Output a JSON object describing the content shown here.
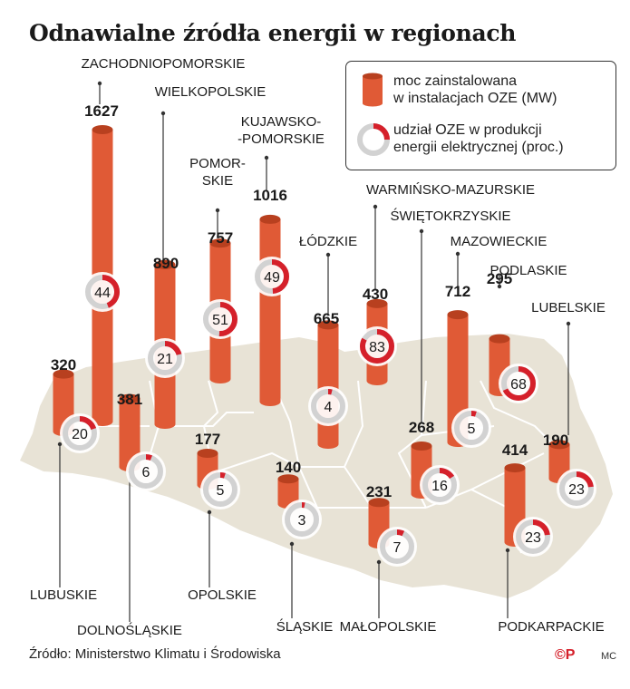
{
  "title": "Odnawialne źródła energii w regionach",
  "source": "Źródło: Ministerstwo Klimatu i Środowiska",
  "brand": "©P",
  "author": "MC",
  "legend": {
    "bar_label": "moc zainstalowana w instalacjach OZE (MW)",
    "bar_label_line1": "moc zainstalowana",
    "bar_label_line2": "w instalacjach OZE (MW)",
    "ring_label": "udział OZE w produkcji energii elektrycznej (proc.)",
    "ring_label_line1": "udział OZE w produkcji",
    "ring_label_line2": "energii elektrycznej (proc.)"
  },
  "colors": {
    "bar": "#e05a36",
    "bar_dark": "#b8401f",
    "ring_accent": "#d5202a",
    "ring_track": "#d2d2d2",
    "map_fill": "#e8e3d6",
    "map_border": "#ffffff",
    "outside_map": "#ffffff"
  },
  "chart_data": {
    "type": "bar",
    "title": "Odnawialne źródła energii w regionach",
    "categories": [
      "ZACHODNIOPOMORSKIE",
      "WIELKOPOLSKIE",
      "POMORSKIE",
      "KUJAWSKO-POMORSKIE",
      "ŁÓDZKIE",
      "WARMIŃSKO-MAZURSKIE",
      "MAZOWIECKIE",
      "PODLASKIE",
      "LUBELSKIE",
      "LUBUSKIE",
      "DOLNOŚLĄSKIE",
      "OPOLSKIE",
      "ŚLĄSKIE",
      "MAŁOPOLSKIE",
      "ŚWIĘTOKRZYSKIE",
      "PODKARPACKIE"
    ],
    "series": [
      {
        "name": "moc zainstalowana w instalacjach OZE (MW)",
        "values": [
          1627,
          890,
          757,
          1016,
          665,
          430,
          712,
          295,
          190,
          320,
          381,
          177,
          140,
          231,
          268,
          414
        ]
      },
      {
        "name": "udział OZE w produkcji energii elektrycznej (proc.)",
        "values": [
          44,
          21,
          51,
          49,
          4,
          83,
          5,
          68,
          23,
          20,
          6,
          5,
          3,
          7,
          16,
          23
        ]
      }
    ]
  },
  "regions": [
    {
      "name": "ZACHODNIOPOMORSKIE",
      "label_lines": [
        "ZACHODNIOPOMORSKIE"
      ],
      "value_label": "1627",
      "pct_label": "44"
    },
    {
      "name": "WIELKOPOLSKIE",
      "label_lines": [
        "WIELKOPOLSKIE"
      ],
      "value_label": "890",
      "pct_label": "21"
    },
    {
      "name": "POMORSKIE",
      "label_lines": [
        "POMOR-",
        "SKIE"
      ],
      "value_label": "757",
      "pct_label": "51"
    },
    {
      "name": "KUJAWSKO-POMORSKIE",
      "label_lines": [
        "KUJAWSKO-",
        "-POMORSKIE"
      ],
      "value_label": "1016",
      "pct_label": "49"
    },
    {
      "name": "ŁÓDZKIE",
      "label_lines": [
        "ŁÓDZKIE"
      ],
      "value_label": "665",
      "pct_label": "4"
    },
    {
      "name": "WARMIŃSKO-MAZURSKIE",
      "label_lines": [
        "WARMIŃSKO-MAZURSKIE"
      ],
      "value_label": "430",
      "pct_label": "83"
    },
    {
      "name": "MAZOWIECKIE",
      "label_lines": [
        "MAZOWIECKIE"
      ],
      "value_label": "712",
      "pct_label": "5"
    },
    {
      "name": "PODLASKIE",
      "label_lines": [
        "PODLASKIE"
      ],
      "value_label": "295",
      "pct_label": "68"
    },
    {
      "name": "LUBELSKIE",
      "label_lines": [
        "LUBELSKIE"
      ],
      "value_label": "190",
      "pct_label": "23"
    },
    {
      "name": "LUBUSKIE",
      "label_lines": [
        "LUBUSKIE"
      ],
      "value_label": "320",
      "pct_label": "20"
    },
    {
      "name": "DOLNOŚLĄSKIE",
      "label_lines": [
        "DOLNOŚLĄSKIE"
      ],
      "value_label": "381",
      "pct_label": "6"
    },
    {
      "name": "OPOLSKIE",
      "label_lines": [
        "OPOLSKIE"
      ],
      "value_label": "177",
      "pct_label": "5"
    },
    {
      "name": "ŚLĄSKIE",
      "label_lines": [
        "ŚLĄSKIE"
      ],
      "value_label": "140",
      "pct_label": "3"
    },
    {
      "name": "MAŁOPOLSKIE",
      "label_lines": [
        "MAŁOPOLSKIE"
      ],
      "value_label": "231",
      "pct_label": "7"
    },
    {
      "name": "ŚWIĘTOKRZYSKIE",
      "label_lines": [
        "ŚWIĘTOKRZYSKIE"
      ],
      "value_label": "268",
      "pct_label": "16"
    },
    {
      "name": "PODKARPACKIE",
      "label_lines": [
        "PODKARPACKIE"
      ],
      "value_label": "414",
      "pct_label": "23"
    }
  ]
}
